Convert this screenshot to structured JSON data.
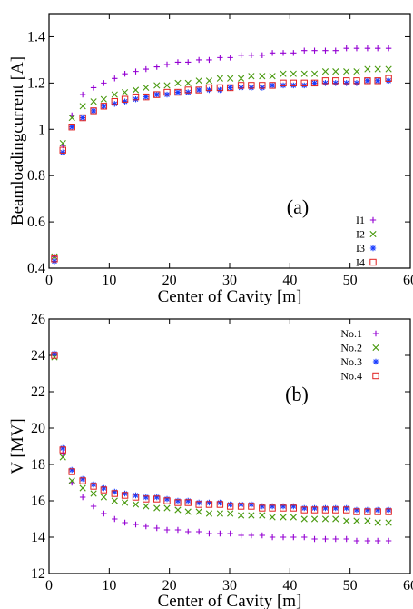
{
  "colors": {
    "I1": "#9400d3",
    "I2": "#4a9a10",
    "I3": "#1a3cff",
    "I4": "#e02020",
    "frame": "#000000"
  },
  "chart_data": [
    {
      "type": "scatter",
      "panel_label": "(a)",
      "xlabel": "Center of Cavity [m]",
      "ylabel": "Beamloadingcurrent [A]",
      "xlim": [
        0,
        60
      ],
      "ylim": [
        0.4,
        1.5
      ],
      "xticks": [
        0,
        10,
        20,
        30,
        40,
        50,
        60
      ],
      "yticks": [
        0.4,
        0.6,
        0.8,
        1,
        1.2,
        1.4
      ],
      "grid": false,
      "legend_position": "bottom-right",
      "x": [
        0.9,
        2.3,
        3.8,
        5.6,
        7.4,
        9.1,
        10.9,
        12.6,
        14.4,
        16.1,
        17.9,
        19.6,
        21.4,
        23.1,
        24.9,
        26.6,
        28.4,
        30.1,
        31.9,
        33.6,
        35.4,
        37.1,
        38.9,
        40.6,
        42.4,
        44.1,
        45.9,
        47.6,
        49.4,
        51.1,
        52.9,
        54.6,
        56.4
      ],
      "series": [
        {
          "name": "I1",
          "marker": "+",
          "color_key": "I1",
          "values": [
            0.45,
            0.93,
            1.06,
            1.15,
            1.18,
            1.2,
            1.22,
            1.24,
            1.25,
            1.26,
            1.27,
            1.28,
            1.29,
            1.29,
            1.3,
            1.3,
            1.31,
            1.31,
            1.32,
            1.32,
            1.32,
            1.33,
            1.33,
            1.33,
            1.34,
            1.34,
            1.34,
            1.34,
            1.35,
            1.35,
            1.35,
            1.35,
            1.35
          ]
        },
        {
          "name": "I2",
          "marker": "x",
          "color_key": "I2",
          "values": [
            0.45,
            0.94,
            1.05,
            1.1,
            1.12,
            1.13,
            1.15,
            1.16,
            1.17,
            1.18,
            1.19,
            1.19,
            1.2,
            1.2,
            1.21,
            1.21,
            1.22,
            1.22,
            1.22,
            1.23,
            1.23,
            1.23,
            1.24,
            1.24,
            1.24,
            1.24,
            1.25,
            1.25,
            1.25,
            1.25,
            1.26,
            1.26,
            1.26
          ]
        },
        {
          "name": "I3",
          "marker": "*",
          "color_key": "I3",
          "values": [
            0.43,
            0.9,
            1.01,
            1.05,
            1.08,
            1.1,
            1.11,
            1.12,
            1.13,
            1.14,
            1.15,
            1.15,
            1.16,
            1.16,
            1.17,
            1.17,
            1.17,
            1.18,
            1.18,
            1.18,
            1.18,
            1.19,
            1.19,
            1.19,
            1.19,
            1.2,
            1.2,
            1.2,
            1.2,
            1.2,
            1.21,
            1.21,
            1.21
          ]
        },
        {
          "name": "I4",
          "marker": "square",
          "color_key": "I4",
          "values": [
            0.44,
            0.91,
            1.01,
            1.05,
            1.08,
            1.1,
            1.12,
            1.13,
            1.14,
            1.14,
            1.15,
            1.16,
            1.16,
            1.17,
            1.17,
            1.18,
            1.18,
            1.18,
            1.19,
            1.19,
            1.19,
            1.19,
            1.2,
            1.2,
            1.2,
            1.2,
            1.21,
            1.21,
            1.21,
            1.21,
            1.21,
            1.21,
            1.22
          ]
        }
      ]
    },
    {
      "type": "scatter",
      "panel_label": "(b)",
      "xlabel": "Center of Cavity [m]",
      "ylabel": "V [MV]",
      "xlim": [
        0,
        60
      ],
      "ylim": [
        12,
        26
      ],
      "xticks": [
        0,
        10,
        20,
        30,
        40,
        50,
        60
      ],
      "yticks": [
        12,
        14,
        16,
        18,
        20,
        22,
        24,
        26
      ],
      "grid": false,
      "legend_position": "top-right",
      "x": [
        0.9,
        2.3,
        3.8,
        5.6,
        7.4,
        9.1,
        10.9,
        12.6,
        14.4,
        16.1,
        17.9,
        19.6,
        21.4,
        23.1,
        24.9,
        26.6,
        28.4,
        30.1,
        31.9,
        33.6,
        35.4,
        37.1,
        38.9,
        40.6,
        42.4,
        44.1,
        45.9,
        47.6,
        49.4,
        51.1,
        52.9,
        54.6,
        56.4
      ],
      "series": [
        {
          "name": "No.1",
          "marker": "+",
          "color_key": "I1",
          "values": [
            24.0,
            18.6,
            17.0,
            16.2,
            15.7,
            15.3,
            15.0,
            14.8,
            14.7,
            14.6,
            14.5,
            14.4,
            14.4,
            14.3,
            14.3,
            14.2,
            14.2,
            14.2,
            14.1,
            14.1,
            14.1,
            14.0,
            14.0,
            14.0,
            14.0,
            13.9,
            13.9,
            13.9,
            13.9,
            13.8,
            13.8,
            13.8,
            13.8
          ]
        },
        {
          "name": "No.2",
          "marker": "x",
          "color_key": "I2",
          "values": [
            23.9,
            18.4,
            17.1,
            16.7,
            16.4,
            16.2,
            16.0,
            15.9,
            15.8,
            15.7,
            15.6,
            15.6,
            15.5,
            15.4,
            15.4,
            15.3,
            15.3,
            15.3,
            15.2,
            15.2,
            15.2,
            15.1,
            15.1,
            15.1,
            15.0,
            15.0,
            15.0,
            15.0,
            14.9,
            14.9,
            14.9,
            14.8,
            14.8
          ]
        },
        {
          "name": "No.3",
          "marker": "*",
          "color_key": "I3",
          "values": [
            24.1,
            18.9,
            17.7,
            17.2,
            16.9,
            16.7,
            16.5,
            16.4,
            16.3,
            16.2,
            16.2,
            16.1,
            16.0,
            16.0,
            15.9,
            15.9,
            15.9,
            15.8,
            15.8,
            15.8,
            15.7,
            15.7,
            15.7,
            15.7,
            15.6,
            15.6,
            15.6,
            15.6,
            15.6,
            15.5,
            15.5,
            15.5,
            15.5
          ]
        },
        {
          "name": "No.4",
          "marker": "square",
          "color_key": "I4",
          "values": [
            24.0,
            18.8,
            17.6,
            17.1,
            16.8,
            16.6,
            16.4,
            16.3,
            16.2,
            16.1,
            16.1,
            16.0,
            15.9,
            15.9,
            15.8,
            15.8,
            15.8,
            15.7,
            15.7,
            15.7,
            15.6,
            15.6,
            15.6,
            15.6,
            15.5,
            15.5,
            15.5,
            15.5,
            15.5,
            15.4,
            15.4,
            15.4,
            15.4
          ]
        }
      ]
    }
  ]
}
